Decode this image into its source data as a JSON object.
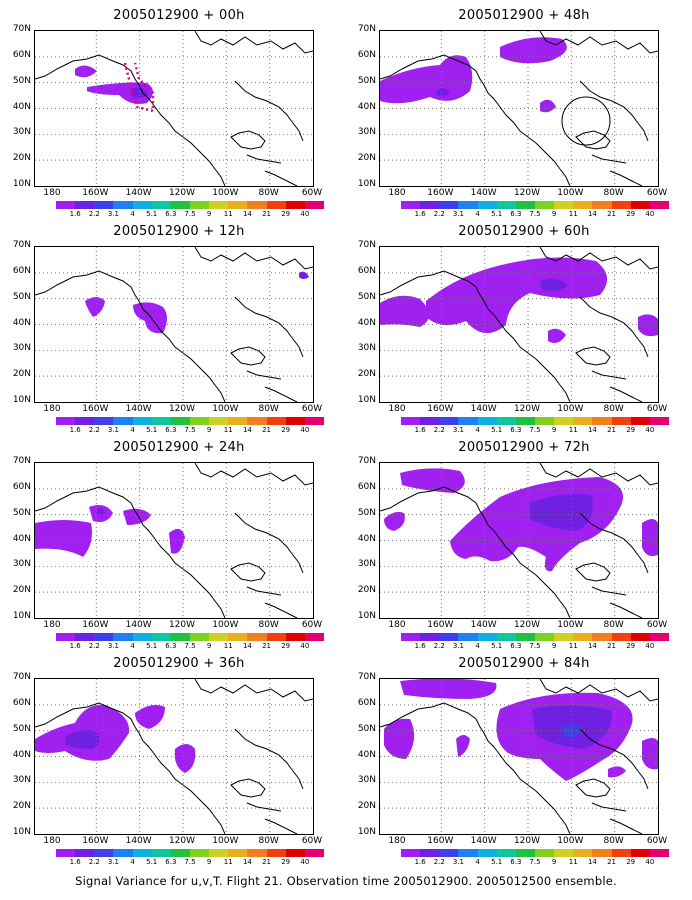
{
  "panels": [
    {
      "title": "2005012900 + 00h"
    },
    {
      "title": "2005012900 + 48h"
    },
    {
      "title": "2005012900 + 12h"
    },
    {
      "title": "2005012900 + 60h"
    },
    {
      "title": "2005012900 + 24h"
    },
    {
      "title": "2005012900 + 72h"
    },
    {
      "title": "2005012900 + 36h"
    },
    {
      "title": "2005012900 + 84h"
    }
  ],
  "lat_labels": [
    "70N",
    "60N",
    "50N",
    "40N",
    "30N",
    "20N",
    "10N"
  ],
  "lon_labels": [
    "180",
    "160W",
    "140W",
    "120W",
    "100W",
    "80W",
    "60W"
  ],
  "colorbar": {
    "labels": [
      "1.6",
      "2.2",
      "3.1",
      "4",
      "5.1",
      "6.3",
      "7.5",
      "9",
      "11",
      "14",
      "21",
      "29",
      "40"
    ],
    "colors": [
      "#a020f0",
      "#7020e0",
      "#4040e8",
      "#2080f0",
      "#10b0e0",
      "#10c8a0",
      "#20c040",
      "#80d020",
      "#d0d020",
      "#e8b020",
      "#f08020",
      "#f04010",
      "#e00000",
      "#e00070"
    ]
  },
  "caption": "Signal Variance for u,v,T. Flight 21. Observation time 2005012900. 2005012500 ensemble.",
  "icons": {
    "variance": "variance-region-icon"
  }
}
